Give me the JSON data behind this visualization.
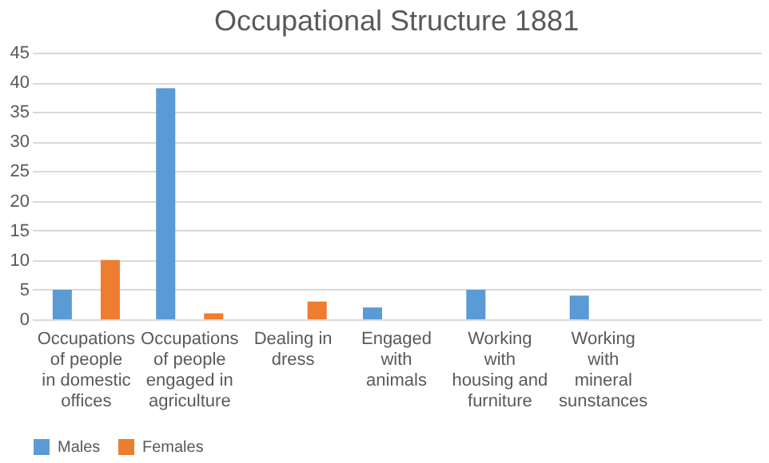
{
  "chart_data": {
    "type": "bar",
    "title": "Occupational Structure 1881",
    "categories": [
      "Occupations of people in domestic offices",
      "Occupations of people engaged in agriculture",
      "Dealing in dress",
      "Engaged with animals",
      "Working with housing and furniture",
      "Working with mineral sunstances",
      null
    ],
    "series": [
      {
        "name": "Males",
        "color": "#5b9bd5",
        "values": [
          5,
          39,
          null,
          2,
          5,
          4,
          null
        ]
      },
      {
        "name": "Females",
        "color": "#ed7d31",
        "values": [
          10,
          1,
          3,
          null,
          null,
          null,
          null
        ]
      }
    ],
    "ylim": [
      0,
      45
    ],
    "yticks": [
      0,
      5,
      10,
      15,
      20,
      25,
      30,
      35,
      40,
      45
    ],
    "grid": "y",
    "legend": "bottom"
  }
}
